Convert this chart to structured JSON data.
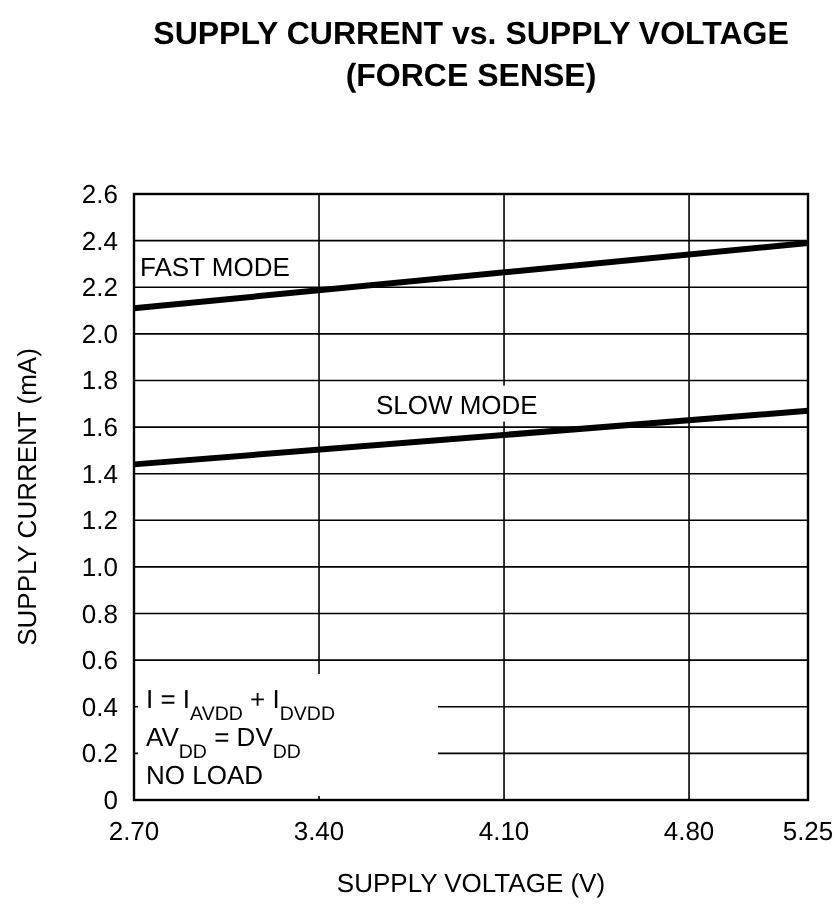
{
  "chart_data": {
    "type": "line",
    "title": "SUPPLY CURRENT vs. SUPPLY VOLTAGE\n(FORCE SENSE)",
    "xlabel": "SUPPLY VOLTAGE (V)",
    "ylabel": "SUPPLY CURRENT (mA)",
    "x": [
      2.7,
      5.25
    ],
    "series": [
      {
        "name": "FAST MODE",
        "color": "#000000",
        "values": [
          2.11,
          2.39
        ]
      },
      {
        "name": "SLOW MODE",
        "color": "#000000",
        "values": [
          1.44,
          1.67
        ]
      }
    ],
    "xlim": [
      2.7,
      5.25
    ],
    "ylim": [
      0,
      2.6
    ],
    "xticks": [
      {
        "value": 2.7,
        "label": "2.70"
      },
      {
        "value": 3.4,
        "label": "3.40"
      },
      {
        "value": 4.1,
        "label": "4.10"
      },
      {
        "value": 4.8,
        "label": "4.80"
      },
      5.25
    ],
    "yticks": [
      0,
      0.2,
      0.4,
      0.6,
      0.8,
      {
        "value": 1,
        "label": "1.0"
      },
      1.2,
      1.4,
      1.6,
      1.8,
      {
        "value": 2,
        "label": "2.0"
      },
      2.2,
      2.4,
      2.6
    ],
    "grid": true,
    "marker": "none",
    "line_style": "solid",
    "annotations": [
      "I = I$_{AVDD}$ + I$_{DVDD}$",
      "AV$_{DD}$ = DV$_{DD}$",
      "NO LOAD"
    ]
  }
}
